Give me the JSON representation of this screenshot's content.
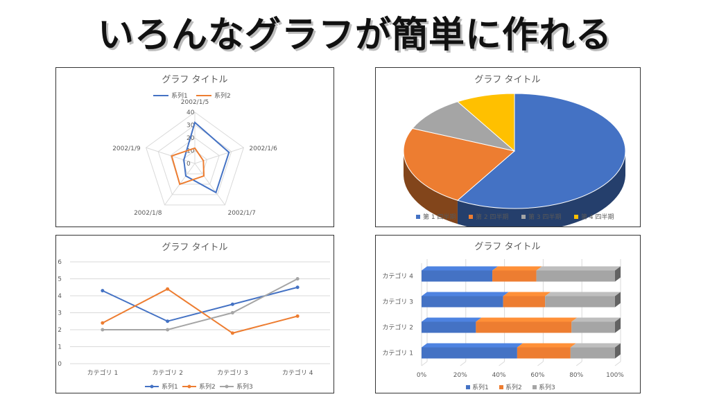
{
  "headline": "いろんなグラフが簡単に作れる",
  "colors": {
    "blue": "#4472c4",
    "orange": "#ed7d31",
    "gray": "#a5a5a5",
    "yellow": "#ffc000",
    "text": "#595959",
    "grid": "#d9d9d9"
  },
  "radar": {
    "chart_data": {
      "type": "radar",
      "title": "グラフ タイトル",
      "categories": [
        "2002/1/5",
        "2002/1/6",
        "2002/1/7",
        "2002/1/8",
        "2002/1/9"
      ],
      "ticks": [
        "0",
        "10",
        "20",
        "30",
        "40"
      ],
      "rmax": 40,
      "series": [
        {
          "name": "系列1",
          "values": [
            32,
            28,
            28,
            12,
            9
          ]
        },
        {
          "name": "系列2",
          "values": [
            12,
            7,
            12,
            20,
            19
          ]
        }
      ]
    }
  },
  "pie": {
    "chart_data": {
      "type": "pie",
      "title": "グラフ タイトル",
      "categories": [
        "第 1 四半期",
        "第 2 四半期",
        "第 3 四半期",
        "第 4 四半期"
      ],
      "values": [
        8.2,
        3.2,
        1.4,
        1.2
      ],
      "legend": "bottom"
    }
  },
  "line": {
    "chart_data": {
      "type": "line",
      "title": "グラフ タイトル",
      "categories": [
        "カテゴリ 1",
        "カテゴリ 2",
        "カテゴリ 3",
        "カテゴリ 4"
      ],
      "ylim": [
        0,
        6
      ],
      "yticks": [
        "0",
        "1",
        "2",
        "3",
        "4",
        "5",
        "6"
      ],
      "series": [
        {
          "name": "系列1",
          "values": [
            4.3,
            2.5,
            3.5,
            4.5
          ]
        },
        {
          "name": "系列2",
          "values": [
            2.4,
            4.4,
            1.8,
            2.8
          ]
        },
        {
          "name": "系列3",
          "values": [
            2,
            2,
            3,
            5
          ]
        }
      ],
      "legend": "bottom"
    }
  },
  "bar": {
    "chart_data": {
      "type": "bar",
      "stacked": "percent",
      "title": "グラフ タイトル",
      "categories": [
        "カテゴリ 1",
        "カテゴリ 2",
        "カテゴリ 3",
        "カテゴリ 4"
      ],
      "xticks": [
        "0%",
        "20%",
        "40%",
        "60%",
        "80%",
        "100%"
      ],
      "series": [
        {
          "name": "系列1",
          "values": [
            4.3,
            2.5,
            3.5,
            4.5
          ]
        },
        {
          "name": "系列2",
          "values": [
            2.4,
            4.4,
            1.8,
            2.8
          ]
        },
        {
          "name": "系列3",
          "values": [
            2,
            2,
            3,
            5
          ]
        }
      ],
      "legend": "bottom"
    }
  }
}
